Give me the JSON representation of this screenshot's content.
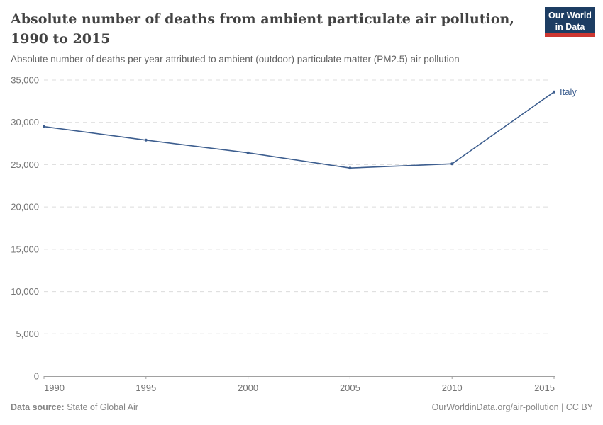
{
  "header": {
    "title": "Absolute number of deaths from ambient particulate air pollution, 1990 to 2015",
    "subtitle": "Absolute number of deaths per year attributed to ambient (outdoor) particulate matter (PM2.5) air pollution"
  },
  "logo": {
    "line1": "Our World",
    "line2": "in Data",
    "bg_color": "#1d3d63",
    "accent_color": "#cd3731"
  },
  "chart_data": {
    "type": "line",
    "title": "Absolute number of deaths from ambient particulate air pollution, 1990 to 2015",
    "x": [
      1990,
      1995,
      2000,
      2005,
      2010,
      2015
    ],
    "xtick_labels": [
      "1990",
      "1995",
      "2000",
      "2005",
      "2010",
      "2015"
    ],
    "series": [
      {
        "name": "Italy",
        "values": [
          29500,
          27900,
          26400,
          24600,
          25100,
          33600
        ],
        "color": "#3d5e8f"
      }
    ],
    "xlabel": "",
    "ylabel": "",
    "ylim": [
      0,
      35000
    ],
    "ytick_interval": 5000,
    "ytick_labels": [
      "0",
      "5,000",
      "10,000",
      "15,000",
      "20,000",
      "25,000",
      "30,000",
      "35,000"
    ],
    "grid": "horizontal-dashed",
    "legend_position": "end-of-line-label",
    "colors": {
      "gridline": "#dcdcdc",
      "axis": "#a1a1a1",
      "tick_label": "#757575"
    }
  },
  "footer": {
    "source_label": "Data source:",
    "source_value": " State of Global Air",
    "right_text": "OurWorldinData.org/air-pollution | CC BY"
  }
}
